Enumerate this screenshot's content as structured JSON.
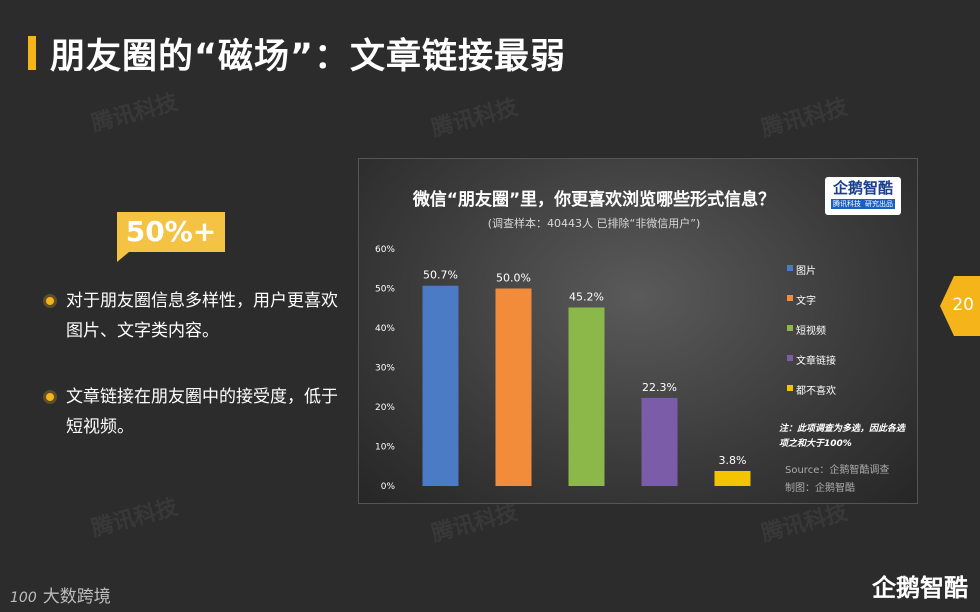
{
  "page": {
    "title": "朋友圈的“磁场”：文章链接最弱",
    "badge": "50%+",
    "bullets": [
      "对于朋友圈信息多样性，用户更喜欢图片、文字类内容。",
      "文章链接在朋友圈中的接受度，低于短视频。"
    ],
    "page_number": "20",
    "footer_left": "大数跨境",
    "footer_left_mark": "100",
    "footer_right": "企鹅智酷",
    "watermark": "腾讯科技"
  },
  "colors": {
    "accent": "#f5b51a",
    "bar_blue": "#4a7bc4",
    "bar_orange": "#f28c3a",
    "bar_green": "#8cb84a",
    "bar_purple": "#7a5ca8",
    "bar_yellow": "#f5c400"
  },
  "chart_data": {
    "type": "bar",
    "title": "微信“朋友圈”里，你更喜欢浏览哪些形式信息？",
    "subtitle": "(调查样本：40443人 已排除“非微信用户”)",
    "categories": [
      "图片",
      "文字",
      "短视频",
      "文章链接",
      "都不喜欢"
    ],
    "values": [
      50.7,
      50.0,
      45.2,
      22.3,
      3.8
    ],
    "value_labels": [
      "50.7%",
      "50.0%",
      "45.2%",
      "22.3%",
      "3.8%"
    ],
    "bar_colors": [
      "#4a7bc4",
      "#f28c3a",
      "#8cb84a",
      "#7a5ca8",
      "#f5c400"
    ],
    "ylim": [
      0,
      60
    ],
    "yticks": [
      "0%",
      "10%",
      "20%",
      "30%",
      "40%",
      "50%",
      "60%"
    ],
    "legend_position": "right",
    "grid": false,
    "note": "注：此项调查为多选，因此各选项之和大于100%",
    "source": "Source：企鹅智酷调查",
    "made_by": "制图：企鹅智酷",
    "logo_text": "企鹅智酷",
    "logo_sub_left": "腾讯科技",
    "logo_sub_right": "研究出品"
  }
}
